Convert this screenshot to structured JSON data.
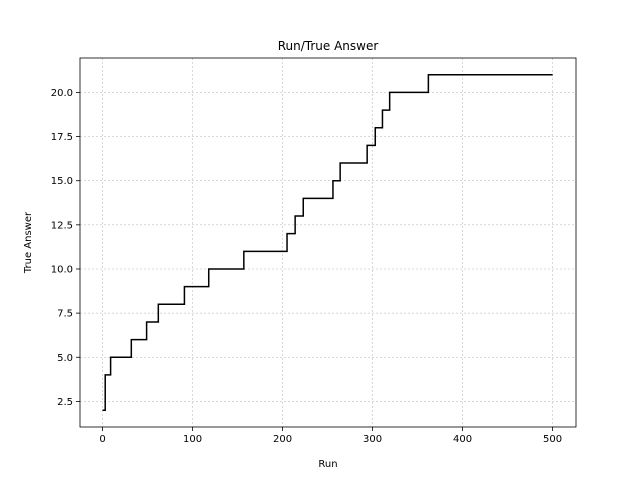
{
  "chart_data": {
    "type": "line",
    "title": "Run/True Answer",
    "xlabel": "Run",
    "ylabel": "True Answer",
    "xlim": [
      -25,
      526
    ],
    "ylim": [
      1.05,
      21.95
    ],
    "xticks": [
      0,
      100,
      200,
      300,
      400,
      500
    ],
    "yticks": [
      2.5,
      5.0,
      7.5,
      10.0,
      12.5,
      15.0,
      17.5,
      20.0
    ],
    "ytick_labels": [
      "2.5",
      "5.0",
      "7.5",
      "10.0",
      "12.5",
      "15.0",
      "17.5",
      "20.0"
    ],
    "grid": true,
    "grid_style": "dashed",
    "step": "post",
    "line_color": "#000000",
    "grid_color": "#b0b0b0",
    "series": [
      {
        "x": [
          0,
          3,
          9,
          32,
          49,
          62,
          91,
          118,
          157,
          205,
          214,
          223,
          256,
          264,
          294,
          303,
          311,
          319,
          362,
          500
        ],
        "y": [
          2,
          4,
          5,
          6,
          7,
          8,
          9,
          10,
          11,
          12,
          13,
          14,
          15,
          16,
          17,
          18,
          19,
          20,
          21,
          21
        ]
      }
    ]
  }
}
